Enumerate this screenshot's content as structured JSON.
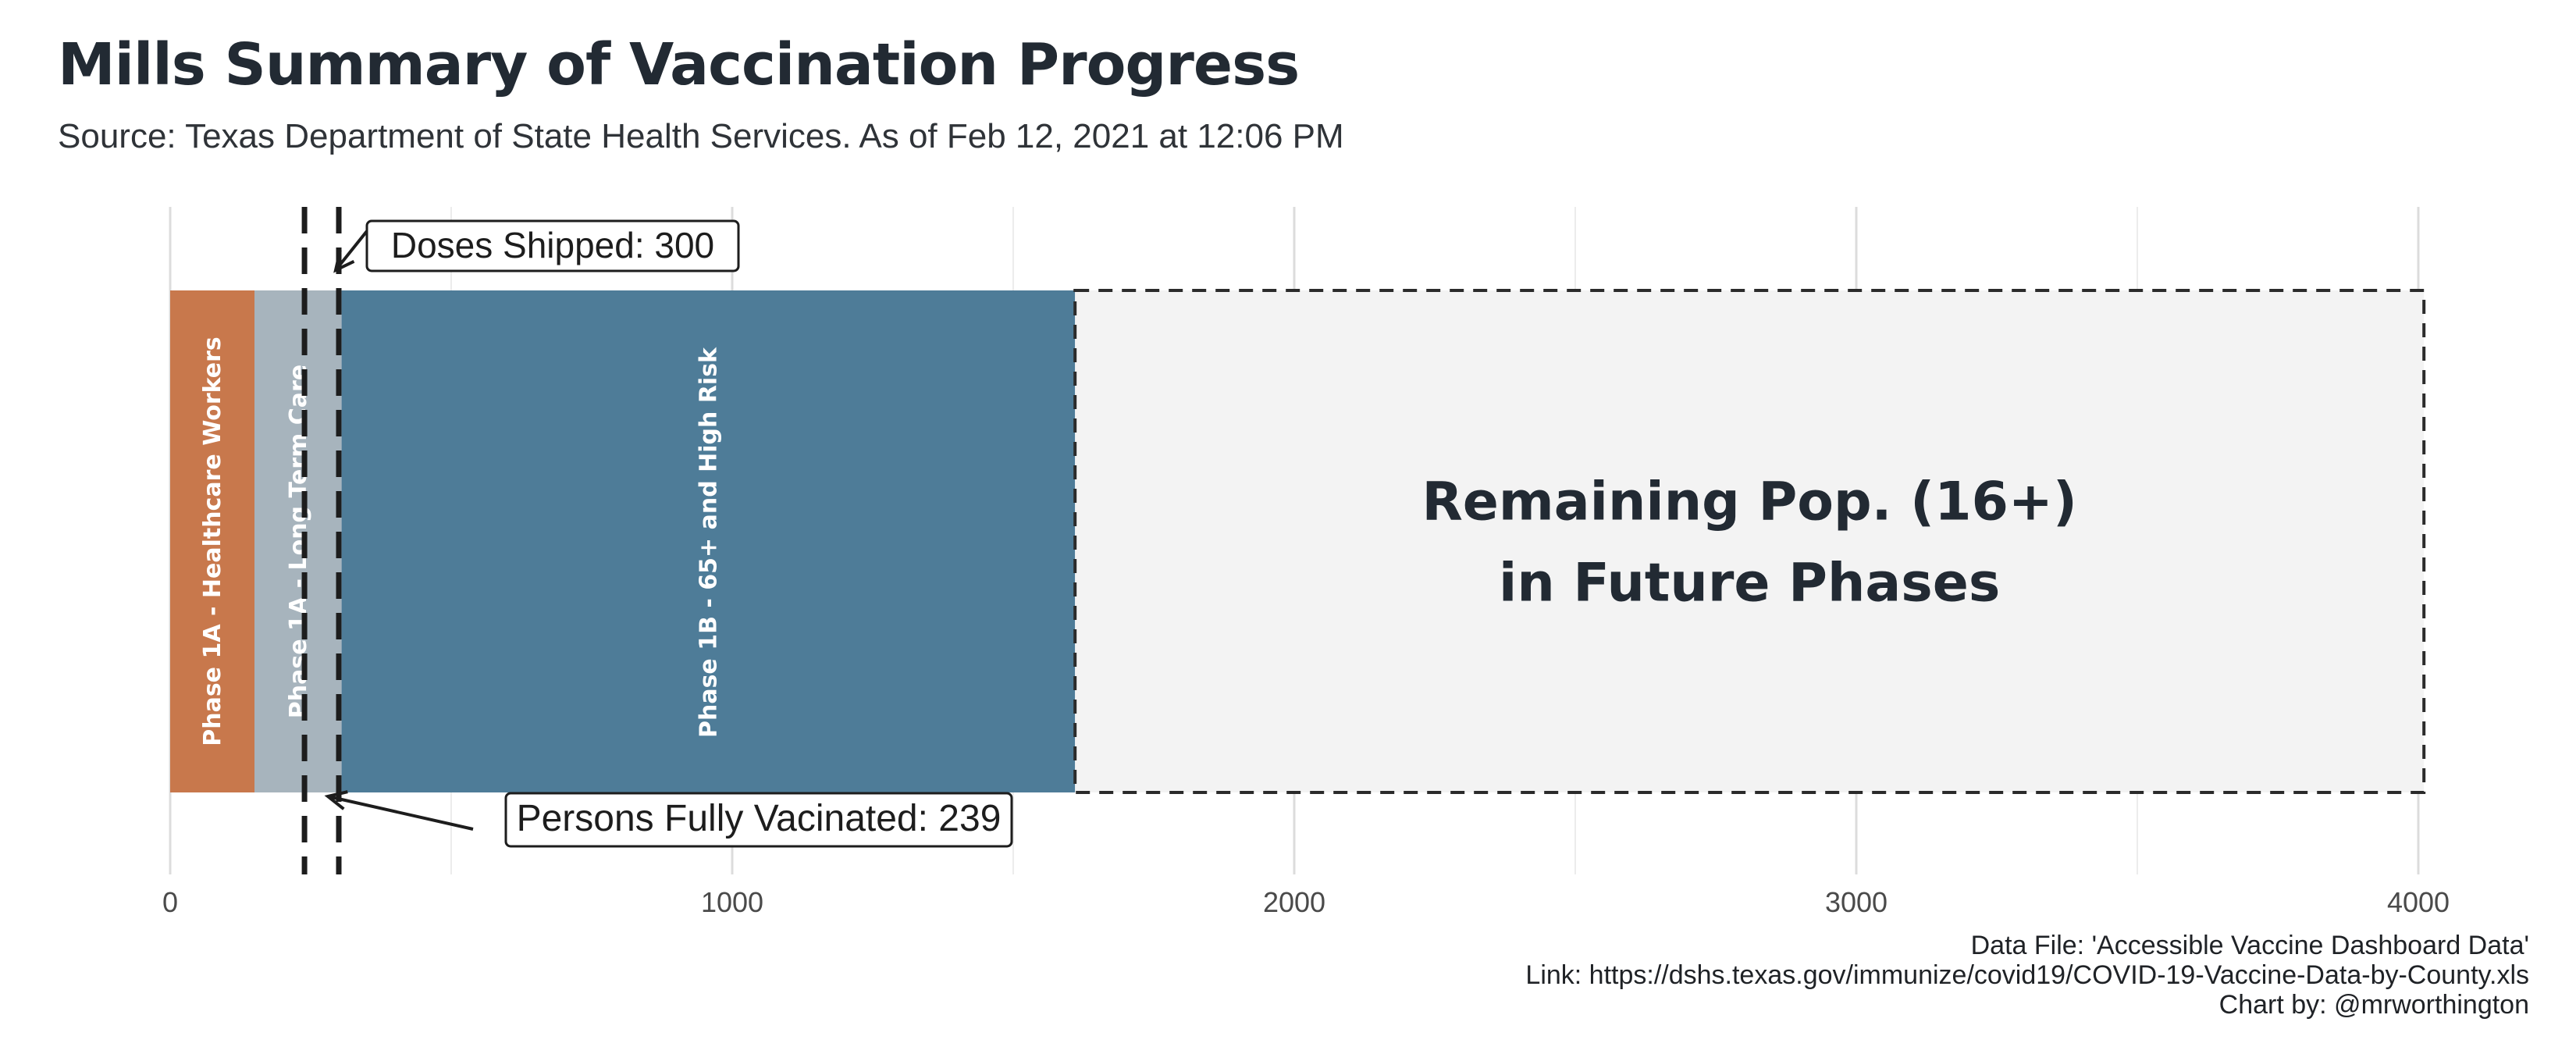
{
  "title": "Mills Summary of Vaccination Progress",
  "subtitle": "Source: Texas Department of State Health Services. As of Feb 12, 2021 at 12:06 PM",
  "chart_data": {
    "type": "bar",
    "orientation": "horizontal-stacked",
    "xlim": [
      0,
      4000
    ],
    "x_ticks": [
      0,
      1000,
      2000,
      3000,
      4000
    ],
    "x_tick_labels": [
      "0",
      "1000",
      "2000",
      "3000",
      "4000"
    ],
    "grid": true,
    "segments": [
      {
        "label": "Phase 1A - Healthcare Workers",
        "start": 0,
        "end": 150,
        "color": "#c8784c"
      },
      {
        "label": "Phase 1A - Long Term Care",
        "start": 150,
        "end": 305,
        "color": "#a7b4bd"
      },
      {
        "label": "Phase 1B - 65+ and High Risk",
        "start": 305,
        "end": 1610,
        "color": "#4e7c98"
      },
      {
        "label": "Remaining Pop. (16+)\nin Future Phases",
        "start": 1610,
        "end": 4010,
        "color": "#f3f3f3",
        "style": "dashed"
      }
    ],
    "reference_lines": [
      {
        "label": "Doses Shipped: 300",
        "value": 300
      },
      {
        "label": "Persons Fully Vacinated: 239",
        "value": 239
      }
    ]
  },
  "footer": {
    "line1": "Data File: 'Accessible Vaccine Dashboard Data'",
    "line2": "Link: https://dshs.texas.gov/immunize/covid19/COVID-19-Vaccine-Data-by-County.xls",
    "line3": "Chart by: @mrworthington"
  }
}
